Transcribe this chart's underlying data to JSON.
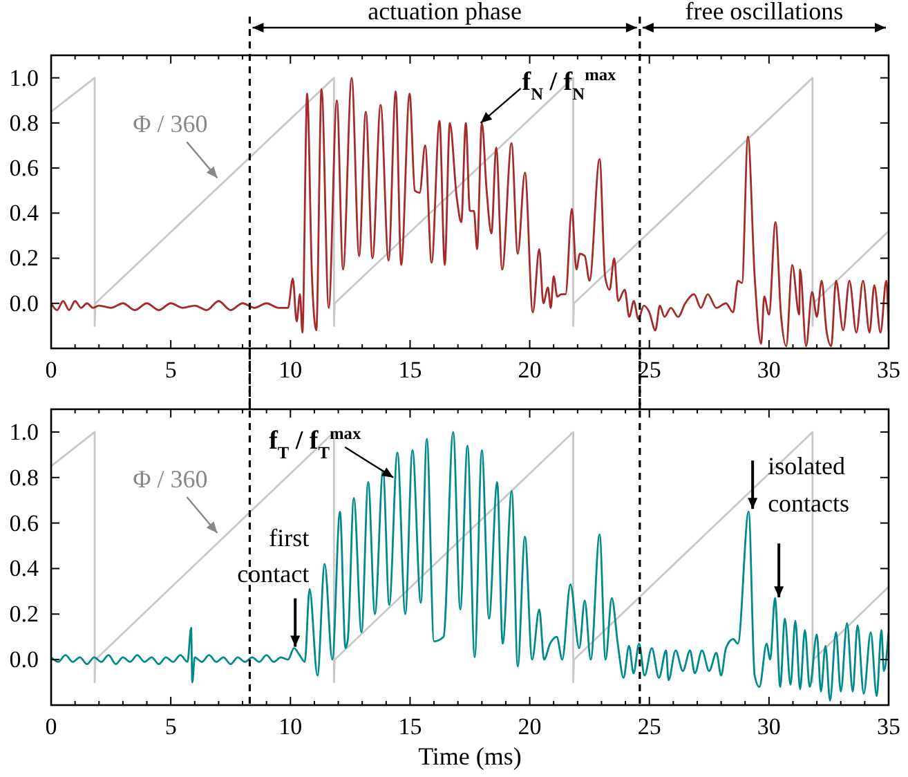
{
  "chart_data": [
    {
      "type": "line",
      "annotations": [
        {
          "text": "Φ / 360",
          "x": 7.0,
          "y": 0.55
        },
        {
          "text": "f$_{N}$ / f$_{N}$$^{max}$",
          "x": 17.95,
          "y": 0.8
        },
        "actuation phase",
        "free oscillations"
      ],
      "xlim": [
        0,
        35
      ],
      "ylim": [
        -0.2,
        1.1
      ],
      "xticks": [
        0,
        {
          "value": 1,
          "label": null
        },
        {
          "value": 2,
          "label": null
        },
        {
          "value": 3,
          "label": null
        },
        {
          "value": 4,
          "label": null
        },
        5,
        {
          "value": 6,
          "label": null
        },
        {
          "value": 7,
          "label": null
        },
        {
          "value": 8,
          "label": null
        },
        {
          "value": 9,
          "label": null
        },
        10,
        {
          "value": 11,
          "label": null
        },
        {
          "value": 12,
          "label": null
        },
        {
          "value": 13,
          "label": null
        },
        {
          "value": 14,
          "label": null
        },
        15,
        {
          "value": 16,
          "label": null
        },
        {
          "value": 17,
          "label": null
        },
        {
          "value": 18,
          "label": null
        },
        {
          "value": 19,
          "label": null
        },
        20,
        {
          "value": 21,
          "label": null
        },
        {
          "value": 22,
          "label": null
        },
        {
          "value": 23,
          "label": null
        },
        {
          "value": 24,
          "label": null
        },
        25,
        {
          "value": 26,
          "label": null
        },
        {
          "value": 27,
          "label": null
        },
        {
          "value": 28,
          "label": null
        },
        {
          "value": 29,
          "label": null
        },
        30,
        {
          "value": 31,
          "label": null
        },
        {
          "value": 32,
          "label": null
        },
        {
          "value": 33,
          "label": null
        },
        {
          "value": 34,
          "label": null
        },
        35
      ],
      "yticks": [
        {
          "value": 0,
          "label": "0.0"
        },
        {
          "value": 0.2,
          "label": "0.2"
        },
        {
          "value": 0.4,
          "label": "0.4"
        },
        {
          "value": 0.6,
          "label": "0.6"
        },
        {
          "value": 0.8,
          "label": "0.8"
        },
        {
          "value": 1,
          "label": "1.0"
        }
      ],
      "ref_lines": [
        {
          "axis": "x",
          "value": 8.3,
          "label": null,
          "color": "#000000",
          "line_style": "dashed"
        },
        {
          "axis": "x",
          "value": 24.6,
          "label": null,
          "color": "#000000",
          "line_style": "dashed"
        }
      ],
      "series": [
        {
          "color": "#c8c8c8",
          "x": [
            0,
            1.82,
            1.82,
            1.85,
            11.82,
            11.82,
            11.85,
            21.82,
            21.82,
            21.85,
            31.82,
            31.82,
            31.85,
            35
          ],
          "values": [
            0.85,
            1.0,
            -0.1,
            0.0,
            1.0,
            -0.1,
            0.0,
            1.0,
            -0.1,
            0.0,
            1.0,
            -0.1,
            0.0,
            0.32
          ]
        },
        {
          "color": "#a52a2a",
          "x": [
            0,
            0.25,
            0.5,
            0.75,
            1.0,
            1.25,
            1.5,
            1.75,
            2.0,
            2.5,
            3.0,
            3.5,
            4.0,
            4.5,
            5.0,
            5.5,
            6.0,
            6.5,
            7.0,
            7.5,
            8.0,
            8.5,
            9.0,
            9.5,
            9.9,
            10.1,
            10.26,
            10.4,
            10.5,
            10.7,
            10.9,
            11.08,
            11.3,
            11.6,
            11.94,
            12.2,
            12.56,
            12.87,
            13.15,
            13.43,
            13.77,
            14.1,
            14.4,
            14.63,
            14.98,
            15.2,
            15.4,
            15.63,
            15.9,
            16.23,
            16.45,
            16.66,
            16.95,
            17.14,
            17.33,
            17.5,
            17.67,
            17.8,
            18.0,
            18.2,
            18.4,
            18.6,
            18.85,
            19.24,
            19.5,
            19.8,
            20.13,
            20.4,
            20.57,
            20.76,
            20.88,
            21.0,
            21.15,
            21.33,
            21.5,
            21.76,
            21.95,
            22.1,
            22.3,
            22.5,
            22.92,
            23.15,
            23.34,
            23.53,
            23.7,
            23.97,
            24.16,
            24.35,
            24.54,
            24.77,
            25.0,
            25.25,
            25.44,
            25.63,
            25.9,
            26.2,
            26.5,
            26.87,
            27.15,
            27.44,
            27.8,
            28.2,
            28.5,
            28.7,
            28.87,
            29.12,
            29.4,
            29.67,
            29.8,
            30.0,
            30.27,
            30.5,
            30.72,
            30.97,
            31.26,
            31.3,
            31.55,
            31.8,
            32.0,
            32.2,
            32.4,
            32.6,
            32.8,
            33.1,
            33.36,
            33.65,
            33.93,
            34.2,
            34.4,
            34.66,
            34.9,
            35
          ],
          "values": [
            0.0,
            -0.03,
            0.01,
            -0.03,
            0.01,
            -0.02,
            0.0,
            -0.02,
            -0.01,
            -0.02,
            0.0,
            -0.03,
            0.0,
            -0.03,
            0.0,
            -0.02,
            -0.01,
            -0.03,
            0.01,
            -0.03,
            0.0,
            -0.02,
            0.0,
            -0.02,
            -0.02,
            0.11,
            -0.08,
            0.04,
            -0.13,
            0.93,
            0.12,
            -0.12,
            0.95,
            -0.02,
            0.9,
            0.15,
            1.0,
            0.21,
            0.85,
            0.2,
            0.88,
            0.19,
            0.94,
            0.17,
            0.93,
            0.5,
            0.49,
            0.7,
            0.18,
            0.81,
            0.17,
            0.8,
            0.47,
            0.36,
            0.8,
            0.41,
            0.41,
            0.24,
            0.8,
            0.5,
            0.31,
            0.69,
            0.15,
            0.71,
            0.22,
            0.58,
            -0.04,
            0.24,
            0.0,
            0.07,
            -0.02,
            0.12,
            0.03,
            0.04,
            0.04,
            0.42,
            0.15,
            0.22,
            0.21,
            0.1,
            0.64,
            0.12,
            0.06,
            0.2,
            0.01,
            0.06,
            -0.06,
            0.01,
            -0.07,
            -0.01,
            -0.04,
            -0.12,
            -0.01,
            -0.06,
            -0.02,
            -0.06,
            0.0,
            0.04,
            -0.02,
            0.04,
            -0.02,
            0.0,
            -0.04,
            0.1,
            0.09,
            0.74,
            0.12,
            -0.18,
            0.03,
            -0.05,
            0.36,
            -0.05,
            -0.19,
            0.17,
            -0.05,
            0.15,
            -0.19,
            0.05,
            -0.06,
            0.1,
            -0.12,
            -0.19,
            0.1,
            -0.12,
            0.1,
            -0.13,
            0.1,
            -0.13,
            0.08,
            -0.13,
            0.1,
            -0.12
          ]
        }
      ]
    },
    {
      "type": "line",
      "xlabel": "Time (ms)",
      "annotations": [
        {
          "text": "Φ / 360",
          "x": 7.0,
          "y": 0.55
        },
        {
          "text": "f$_{T}$ / f$_{T}$$^{max}$",
          "x": 14.3,
          "y": 0.8
        },
        {
          "text": "first contact",
          "x": 10.2,
          "y": 0.02
        },
        {
          "text": "isolated contacts",
          "x": 29.2,
          "y": 0.65
        }
      ],
      "xlim": [
        0,
        35
      ],
      "ylim": [
        -0.2,
        1.1
      ],
      "xticks": [
        0,
        {
          "value": 1,
          "label": null
        },
        {
          "value": 2,
          "label": null
        },
        {
          "value": 3,
          "label": null
        },
        {
          "value": 4,
          "label": null
        },
        5,
        {
          "value": 6,
          "label": null
        },
        {
          "value": 7,
          "label": null
        },
        {
          "value": 8,
          "label": null
        },
        {
          "value": 9,
          "label": null
        },
        10,
        {
          "value": 11,
          "label": null
        },
        {
          "value": 12,
          "label": null
        },
        {
          "value": 13,
          "label": null
        },
        {
          "value": 14,
          "label": null
        },
        15,
        {
          "value": 16,
          "label": null
        },
        {
          "value": 17,
          "label": null
        },
        {
          "value": 18,
          "label": null
        },
        {
          "value": 19,
          "label": null
        },
        20,
        {
          "value": 21,
          "label": null
        },
        {
          "value": 22,
          "label": null
        },
        {
          "value": 23,
          "label": null
        },
        {
          "value": 24,
          "label": null
        },
        25,
        {
          "value": 26,
          "label": null
        },
        {
          "value": 27,
          "label": null
        },
        {
          "value": 28,
          "label": null
        },
        {
          "value": 29,
          "label": null
        },
        30,
        {
          "value": 31,
          "label": null
        },
        {
          "value": 32,
          "label": null
        },
        {
          "value": 33,
          "label": null
        },
        {
          "value": 34,
          "label": null
        },
        35
      ],
      "yticks": [
        {
          "value": 0,
          "label": "0.0"
        },
        {
          "value": 0.2,
          "label": "0.2"
        },
        {
          "value": 0.4,
          "label": "0.4"
        },
        {
          "value": 0.6,
          "label": "0.6"
        },
        {
          "value": 0.8,
          "label": "0.8"
        },
        {
          "value": 1,
          "label": "1.0"
        }
      ],
      "ref_lines": [
        {
          "axis": "x",
          "value": 8.3,
          "label": null,
          "color": "#000000",
          "line_style": "dashed"
        },
        {
          "axis": "x",
          "value": 24.6,
          "label": null,
          "color": "#000000",
          "line_style": "dashed"
        }
      ],
      "series": [
        {
          "color": "#c8c8c8",
          "x": [
            0,
            1.82,
            1.82,
            1.85,
            11.82,
            11.82,
            11.85,
            21.82,
            21.82,
            21.85,
            31.82,
            31.82,
            31.85,
            35
          ],
          "values": [
            0.85,
            1.0,
            -0.1,
            0.0,
            1.0,
            -0.1,
            0.0,
            1.0,
            -0.1,
            0.0,
            1.0,
            -0.1,
            0.0,
            0.32
          ]
        },
        {
          "color": "#008b8b",
          "x": [
            0,
            0.3,
            0.6,
            0.9,
            1.2,
            1.5,
            1.8,
            2.1,
            2.4,
            2.7,
            3.0,
            3.3,
            3.6,
            3.9,
            4.2,
            4.5,
            4.8,
            5.1,
            5.4,
            5.7,
            5.85,
            5.9,
            6.0,
            6.3,
            6.6,
            6.9,
            7.2,
            7.5,
            7.8,
            8.1,
            8.4,
            8.7,
            9.0,
            9.3,
            9.6,
            9.9,
            10.15,
            10.38,
            10.6,
            10.8,
            11.13,
            11.43,
            11.75,
            12.07,
            12.3,
            12.4,
            12.65,
            12.97,
            13.25,
            13.53,
            13.87,
            14.13,
            14.47,
            14.8,
            15.1,
            15.45,
            15.7,
            16.0,
            16.4,
            16.8,
            17.1,
            17.4,
            17.7,
            18.0,
            18.3,
            18.64,
            18.87,
            19.25,
            19.5,
            19.8,
            20.1,
            20.4,
            20.6,
            20.85,
            21.13,
            21.36,
            21.7,
            22.07,
            22.3,
            22.55,
            22.92,
            23.17,
            23.43,
            23.68,
            23.92,
            24.15,
            24.34,
            24.57,
            24.8,
            25.1,
            25.4,
            25.7,
            25.8,
            26.1,
            26.4,
            26.7,
            26.9,
            27.2,
            27.5,
            27.8,
            28.0,
            28.2,
            28.5,
            28.7,
            29.15,
            29.4,
            29.6,
            29.9,
            30.05,
            30.25,
            30.47,
            30.66,
            30.9,
            31.1,
            31.3,
            31.5,
            31.7,
            32.0,
            32.17,
            32.36,
            32.55,
            32.8,
            33.0,
            33.26,
            33.5,
            33.7,
            33.96,
            34.25,
            34.5,
            34.7,
            34.8,
            35
          ],
          "values": [
            0.01,
            -0.01,
            0.02,
            -0.01,
            0.01,
            -0.02,
            0.01,
            -0.01,
            0.02,
            -0.02,
            0.01,
            -0.01,
            0.02,
            -0.01,
            0.01,
            -0.02,
            0.01,
            -0.01,
            0.02,
            -0.01,
            0.14,
            -0.1,
            0.01,
            -0.01,
            0.02,
            -0.01,
            0.01,
            -0.02,
            0.01,
            -0.01,
            0.01,
            -0.01,
            0.02,
            -0.01,
            0.01,
            0.0,
            0.05,
            0.02,
            -0.01,
            0.31,
            -0.07,
            0.42,
            0.0,
            0.65,
            0.05,
            0.09,
            0.71,
            0.12,
            0.78,
            0.2,
            0.83,
            0.24,
            0.91,
            0.2,
            0.92,
            0.25,
            0.97,
            0.08,
            0.1,
            1.0,
            0.22,
            0.94,
            0.01,
            0.92,
            0.18,
            0.78,
            0.07,
            0.74,
            -0.03,
            0.54,
            0.0,
            0.22,
            0.0,
            0.07,
            0.1,
            0.0,
            0.33,
            0.05,
            0.26,
            0.0,
            0.55,
            0.0,
            0.27,
            0.07,
            -0.08,
            0.06,
            -0.06,
            0.07,
            -0.07,
            0.05,
            -0.08,
            0.04,
            -0.09,
            0.04,
            -0.05,
            0.04,
            -0.06,
            0.04,
            -0.05,
            0.03,
            -0.07,
            0.05,
            0.09,
            0.07,
            0.65,
            -0.07,
            -0.12,
            0.07,
            0.0,
            0.27,
            -0.12,
            0.18,
            -0.11,
            0.17,
            -0.13,
            0.13,
            -0.12,
            0.11,
            -0.14,
            0.06,
            -0.18,
            0.12,
            -0.14,
            0.16,
            -0.14,
            0.15,
            -0.15,
            0.12,
            -0.16,
            0.13,
            -0.05,
            0.12
          ]
        }
      ]
    }
  ]
}
